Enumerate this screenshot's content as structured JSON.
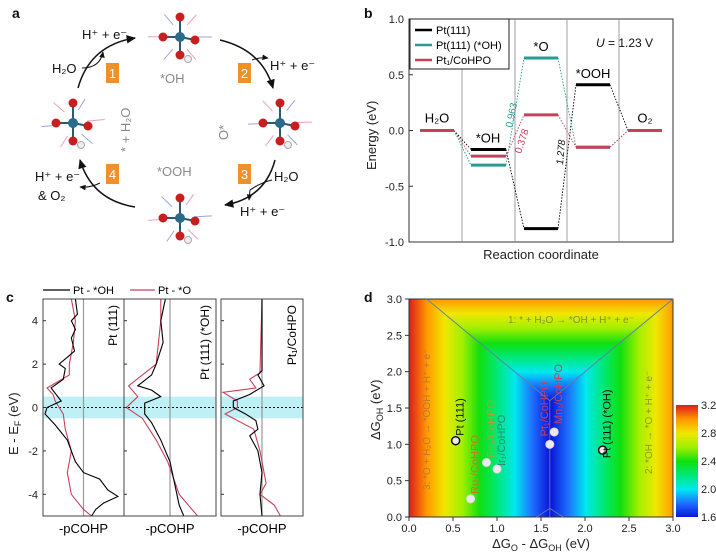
{
  "panel_labels": {
    "a": "a",
    "b": "b",
    "c": "c",
    "d": "d"
  },
  "panel_a": {
    "steps": [
      "1",
      "2",
      "3",
      "4"
    ],
    "step_color": "#f0902a",
    "intermediates": {
      "oh": "*OH",
      "o": "O*",
      "ooh": "*OOH",
      "start": "* + H₂O"
    },
    "reactions": {
      "s1_in": "H₂O",
      "s1_out": "H⁺ + e⁻",
      "s2_out": "H⁺ + e⁻",
      "s3_in": "H₂O",
      "s3_out": "H⁺ + e⁻",
      "s4_out": "H⁺ + e⁻",
      "s4_out2": "& O₂"
    }
  },
  "chart_data": [
    {
      "id": "b",
      "type": "line",
      "ylabel": "Energy (eV)",
      "xlabel": "Reaction coordinate",
      "ylim": [
        -1.0,
        1.0
      ],
      "yticks": [
        "1.0",
        "0.5",
        "0.0",
        "-0.5",
        "-1.0"
      ],
      "annotation": "U = 1.23 V",
      "annotation_var": "U",
      "annotation_rest": " = 1.23 V",
      "categories": [
        "H₂O",
        "*OH",
        "*O",
        "*OOH",
        "O₂"
      ],
      "series": [
        {
          "name": "Pt(111)",
          "color": "#000000",
          "values": [
            0,
            -0.17,
            -0.88,
            0.41,
            0
          ]
        },
        {
          "name": "Pt(111) (*OH)",
          "color": "#2a9a94",
          "values": [
            0,
            -0.31,
            0.65,
            -0.15,
            0
          ]
        },
        {
          "name": "Pt₁/CoHPO",
          "color": "#c8405a",
          "values": [
            0,
            -0.23,
            0.14,
            -0.15,
            0
          ]
        }
      ],
      "step_labels": [
        {
          "text": "0.963",
          "color": "#2a9a94"
        },
        {
          "text": "0.378",
          "color": "#c8405a"
        },
        {
          "text": "1.278",
          "color": "#000000"
        }
      ],
      "legend": "top-left"
    },
    {
      "id": "c",
      "type": "line",
      "ylabel": "E - E",
      "ylabel_sub": "F",
      "ylabel_unit": " (eV)",
      "ylim": [
        -5,
        5
      ],
      "yticks": [
        "4",
        "2",
        "0",
        "-2",
        "-4"
      ],
      "highlight_band": [
        -0.5,
        0.5
      ],
      "legend": [
        {
          "name": "Pt - *OH",
          "color": "#000000"
        },
        {
          "name": "Pt - *O",
          "color": "#c8405a"
        }
      ],
      "panels": [
        {
          "title": "Pt (111)",
          "xlabel": "-pCOHP",
          "black": [
            [
              5,
              -0.2
            ],
            [
              4.3,
              -0.15
            ],
            [
              4,
              -0.3
            ],
            [
              3.6,
              -0.2
            ],
            [
              3.2,
              -0.3
            ],
            [
              2.6,
              -0.22
            ],
            [
              2,
              -0.6
            ],
            [
              1.8,
              -0.45
            ],
            [
              1.3,
              -0.5
            ],
            [
              0.9,
              -0.8
            ],
            [
              0.3,
              -0.55
            ],
            [
              0,
              -0.9
            ],
            [
              -0.3,
              -0.95
            ],
            [
              -0.8,
              -0.7
            ],
            [
              -1.5,
              -0.4
            ],
            [
              -2,
              -0.3
            ],
            [
              -2.5,
              -0.2
            ],
            [
              -3,
              0.0
            ],
            [
              -3.3,
              0.4
            ],
            [
              -3.8,
              0.6
            ],
            [
              -4.1,
              0.85
            ],
            [
              -4.4,
              0.5
            ],
            [
              -4.7,
              0.3
            ],
            [
              -5,
              0.2
            ]
          ],
          "red": [
            [
              5,
              -0.3
            ],
            [
              4,
              -0.2
            ],
            [
              3,
              -0.25
            ],
            [
              2,
              -0.35
            ],
            [
              1.5,
              -0.35
            ],
            [
              0.9,
              -0.9
            ],
            [
              0.6,
              -0.75
            ],
            [
              0.3,
              -0.7
            ],
            [
              0,
              -0.6
            ],
            [
              -0.3,
              -0.5
            ],
            [
              -1,
              -0.45
            ],
            [
              -2,
              -0.3
            ],
            [
              -3,
              -0.4
            ],
            [
              -4,
              -0.3
            ],
            [
              -4.7,
              0.0
            ],
            [
              -5,
              0.2
            ]
          ]
        },
        {
          "title": "Pt (111) (*OH)",
          "xlabel": "-pCOHP",
          "black": [
            [
              5,
              -0.1
            ],
            [
              4,
              -0.2
            ],
            [
              3,
              -0.15
            ],
            [
              2,
              -0.3
            ],
            [
              1.5,
              -0.4
            ],
            [
              1,
              -0.7
            ],
            [
              0.8,
              -0.4
            ],
            [
              0.5,
              -0.2
            ],
            [
              0.2,
              -0.55
            ],
            [
              -0.3,
              -0.55
            ],
            [
              -0.7,
              -0.4
            ],
            [
              -1.5,
              -0.2
            ],
            [
              -2.5,
              0.0
            ],
            [
              -3.5,
              0.1
            ],
            [
              -4.5,
              0.2
            ],
            [
              -5,
              0.3
            ]
          ],
          "red": [
            [
              5,
              -0.2
            ],
            [
              4,
              -0.2
            ],
            [
              2,
              -0.3
            ],
            [
              1,
              -0.9
            ],
            [
              0.5,
              -0.7
            ],
            [
              0,
              -0.95
            ],
            [
              -0.5,
              -0.6
            ],
            [
              -1.5,
              -0.3
            ],
            [
              -2.5,
              -0.05
            ],
            [
              -4,
              0.2
            ],
            [
              -5,
              0.6
            ]
          ]
        },
        {
          "title": "Pt₁/CoHPO",
          "xlabel": "-pCOHP",
          "black": [
            [
              5,
              0
            ],
            [
              1.7,
              0
            ],
            [
              1.5,
              -0.1
            ],
            [
              1,
              0.05
            ],
            [
              0.6,
              -0.3
            ],
            [
              0.3,
              -0.7
            ],
            [
              0,
              -0.7
            ],
            [
              -0.3,
              -0.4
            ],
            [
              -0.6,
              -0.15
            ],
            [
              -1,
              -0.1
            ],
            [
              -1.3,
              -0.3
            ],
            [
              -2,
              -0.1
            ],
            [
              -3,
              0.0
            ],
            [
              -4,
              -0.05
            ],
            [
              -5,
              0.0
            ]
          ],
          "red": [
            [
              5,
              0
            ],
            [
              1.6,
              -0.05
            ],
            [
              1.3,
              -0.3
            ],
            [
              0.9,
              -0.15
            ],
            [
              0.7,
              -0.95
            ],
            [
              0.3,
              -0.6
            ],
            [
              0,
              -0.6
            ],
            [
              -0.3,
              -0.9
            ],
            [
              -1,
              -0.2
            ],
            [
              -2,
              -0.05
            ],
            [
              -3,
              0.05
            ],
            [
              -3.5,
              0.1
            ],
            [
              -4,
              -0.05
            ],
            [
              -4.5,
              0.3
            ],
            [
              -5,
              0.45
            ]
          ]
        }
      ]
    },
    {
      "id": "d",
      "type": "heatmap",
      "xlabel": "ΔG",
      "xlabel_parts": [
        "ΔG",
        "O",
        " - ΔG",
        "OH",
        " (eV)"
      ],
      "ylabel_parts": [
        "ΔG",
        "OH",
        " (eV)"
      ],
      "xlim": [
        0,
        3.0
      ],
      "ylim": [
        0,
        3.0
      ],
      "xticks": [
        "0.0",
        "0.5",
        "1.0",
        "1.5",
        "2.0",
        "2.5",
        "3.0"
      ],
      "yticks": [
        "0.0",
        "0.5",
        "1.0",
        "1.5",
        "2.0",
        "2.5",
        "3.0"
      ],
      "colorbar": {
        "range": [
          1.6,
          3.2
        ],
        "ticks": [
          "3.2",
          "2.8",
          "2.4",
          "2.0",
          "1.6"
        ]
      },
      "regions": [
        {
          "label": "1: * + H₂O → *OH + H⁺ + e⁻"
        },
        {
          "label": "2: *OH → *O + H⁺ + e⁻"
        },
        {
          "label": "3: *O + H₂O → *OOH + H⁺ + e⁻"
        }
      ],
      "points": [
        {
          "label": "Pt (111)",
          "x": 0.53,
          "y": 1.05,
          "color": "#111111"
        },
        {
          "label": "Ru₁/CoHPO",
          "x": 0.7,
          "y": 0.25,
          "color": "#c07a2a"
        },
        {
          "label": "Fe₁/CoHPO",
          "x": 0.88,
          "y": 0.75,
          "color": "#b0a030"
        },
        {
          "label": "Ir₁/CoHPO",
          "x": 1.0,
          "y": 0.66,
          "color": "#2a8a8a"
        },
        {
          "label": "Pt₁/CoHPO",
          "x": 1.6,
          "y": 1.0,
          "color": "#c8405a"
        },
        {
          "label": "Mn₁/CoHPO",
          "x": 1.65,
          "y": 1.17,
          "color": "#c8405a"
        },
        {
          "label": "Pt (111) (*OH)",
          "x": 2.2,
          "y": 0.92,
          "color": "#111111"
        }
      ]
    }
  ]
}
